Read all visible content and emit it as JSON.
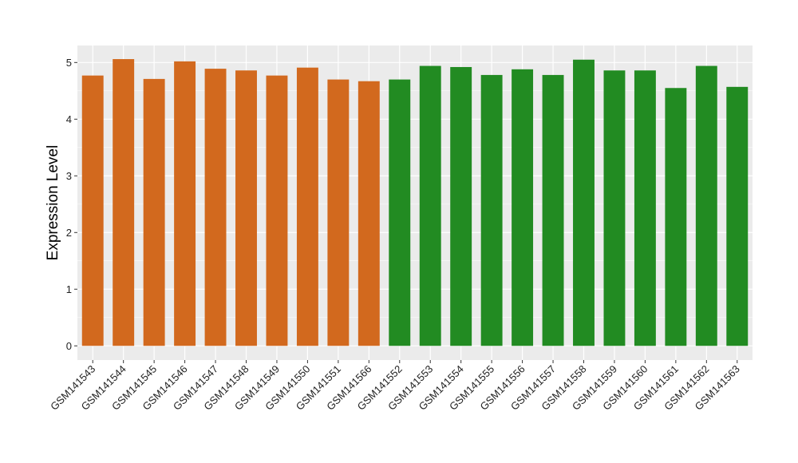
{
  "chart_data": {
    "type": "bar",
    "title": "",
    "xlabel": "",
    "ylabel": "Expression Level",
    "ylim": [
      -0.25,
      5.3
    ],
    "yticks": [
      0,
      1,
      2,
      3,
      4,
      5
    ],
    "grid": true,
    "legend": "none",
    "categories": [
      "GSM141543",
      "GSM141544",
      "GSM141545",
      "GSM141546",
      "GSM141547",
      "GSM141548",
      "GSM141549",
      "GSM141550",
      "GSM141551",
      "GSM141566",
      "GSM141552",
      "GSM141553",
      "GSM141554",
      "GSM141555",
      "GSM141556",
      "GSM141557",
      "GSM141558",
      "GSM141559",
      "GSM141560",
      "GSM141561",
      "GSM141562",
      "GSM141563"
    ],
    "values": [
      4.77,
      5.06,
      4.71,
      5.02,
      4.89,
      4.86,
      4.77,
      4.91,
      4.7,
      4.67,
      4.7,
      4.94,
      4.92,
      4.78,
      4.88,
      4.78,
      5.05,
      4.86,
      4.86,
      4.55,
      4.94,
      4.57
    ],
    "bar_colors": [
      "#d2691e",
      "#d2691e",
      "#d2691e",
      "#d2691e",
      "#d2691e",
      "#d2691e",
      "#d2691e",
      "#d2691e",
      "#d2691e",
      "#d2691e",
      "#228b22",
      "#228b22",
      "#228b22",
      "#228b22",
      "#228b22",
      "#228b22",
      "#228b22",
      "#228b22",
      "#228b22",
      "#228b22",
      "#228b22",
      "#228b22"
    ],
    "panel_background": "#ebebeb",
    "grid_color": "#ffffff"
  }
}
